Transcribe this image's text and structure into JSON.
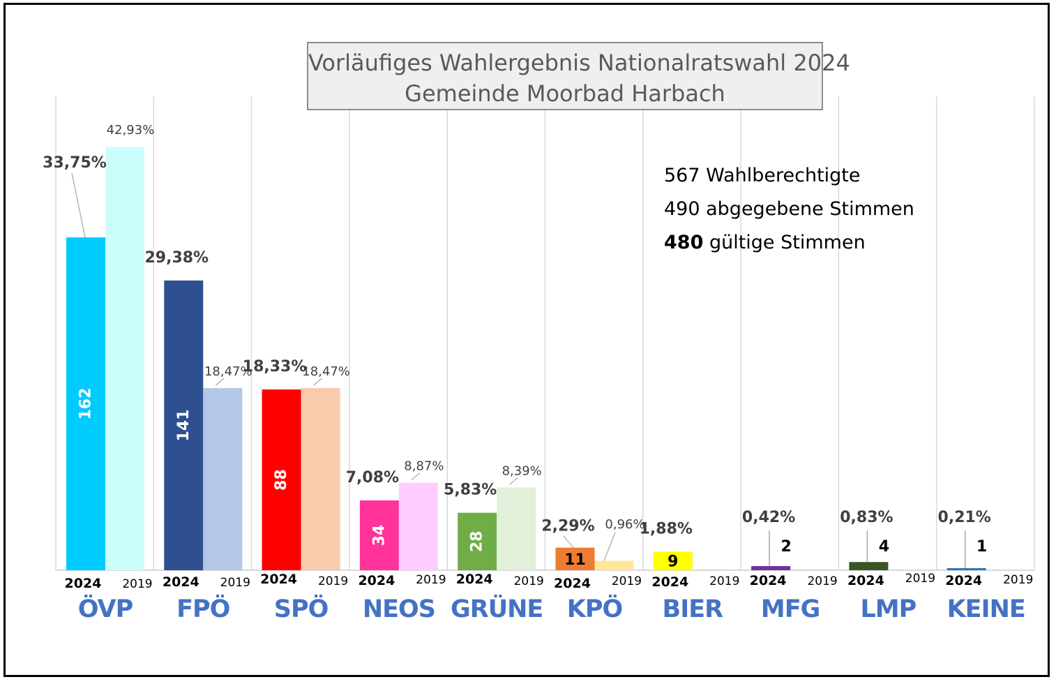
{
  "title": {
    "line1": "Vorläufiges Wahlergebnis Nationalratswahl 2024",
    "line2": "Gemeinde Moorbad Harbach"
  },
  "info": {
    "eligible": "567 Wahlberechtigte",
    "cast": "490 abgegebene Stimmen",
    "valid_number": "480",
    "valid_text": " gültige Stimmen"
  },
  "colors": {
    "party_label": "#4472c4",
    "grid": "#d9d9d9",
    "leader": "#a6a6a6",
    "pct_2024": "#404040",
    "pct_2019": "#404040"
  },
  "chart_data": {
    "type": "bar",
    "categories": [
      "ÖVP",
      "FPÖ",
      "SPÖ",
      "NEOS",
      "GRÜNE",
      "KPÖ",
      "BIER",
      "MFG",
      "LMP",
      "KEINE"
    ],
    "year_labels": {
      "current": "2024",
      "previous": "2019"
    },
    "series": [
      {
        "name": "2024",
        "values": [
          33.75,
          29.38,
          18.33,
          7.08,
          5.83,
          2.29,
          1.88,
          0.42,
          0.83,
          0.21
        ],
        "labels": [
          "33,75%",
          "29,38%",
          "18,33%",
          "7,08%",
          "5,83%",
          "2,29%",
          "1,88%",
          "0,42%",
          "0,83%",
          "0,21%"
        ],
        "votes": [
          "162",
          "141",
          "88",
          "34",
          "28",
          "11",
          "9",
          "2",
          "4",
          "1"
        ],
        "colors": [
          "#00cbff",
          "#2e5090",
          "#ff0000",
          "#ff3399",
          "#70ad47",
          "#ed7d31",
          "#ffff00",
          "#7030a0",
          "#375623",
          "#2e75b6"
        ],
        "vote_label_colors": [
          "#ffffff",
          "#ffffff",
          "#ffffff",
          "#ffffff",
          "#ffffff",
          "#000000",
          "#000000",
          "#000000",
          "#000000",
          "#000000"
        ]
      },
      {
        "name": "2019",
        "values": [
          42.93,
          18.47,
          18.47,
          8.87,
          8.39,
          0.96,
          0,
          0,
          0,
          0
        ],
        "labels": [
          "42,93%",
          "18,47%",
          "18,47%",
          "8,87%",
          "8,39%",
          "0,96%",
          "",
          "",
          "",
          ""
        ],
        "colors": [
          "#ccfdfd",
          "#b4c7e7",
          "#f8cbad",
          "#ffccff",
          "#e2efd9",
          "#ffe699",
          "#ffffff",
          "#ffffff",
          "#ffffff",
          "#ffffff"
        ]
      }
    ],
    "ylim": [
      0,
      45
    ],
    "grid": true
  }
}
